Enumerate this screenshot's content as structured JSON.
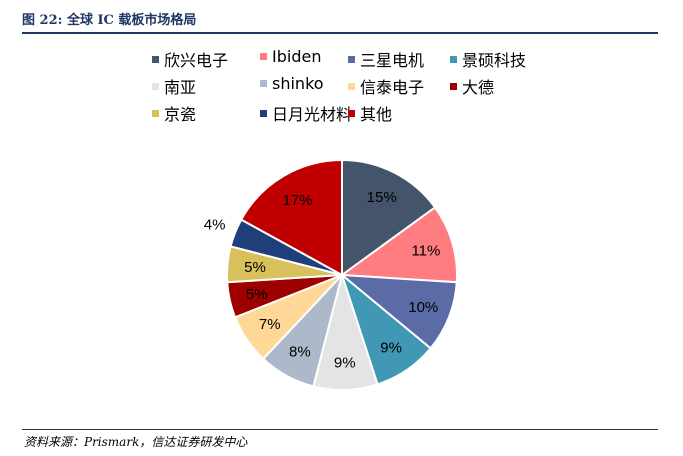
{
  "header": {
    "title": "图 22:  全球 IC 载板市场格局"
  },
  "footer": {
    "source": "资料来源：Prismark，信达证券研发中心"
  },
  "chart_data": {
    "type": "pie",
    "title": "全球 IC 载板市场格局",
    "legend_position": "top",
    "slices": [
      {
        "label": "欣兴电子",
        "value": 15,
        "display": "15%",
        "color": "#44546a"
      },
      {
        "label": "Ibiden",
        "value": 11,
        "display": "11%",
        "color": "#ff7c80"
      },
      {
        "label": "三星电机",
        "value": 10,
        "display": "10%",
        "color": "#5b6ba6"
      },
      {
        "label": "景硕科技",
        "value": 9,
        "display": "9%",
        "color": "#4198b4"
      },
      {
        "label": "南亚",
        "value": 9,
        "display": "9%",
        "color": "#e4e4e4"
      },
      {
        "label": "shinko",
        "value": 8,
        "display": "8%",
        "color": "#acb9ca"
      },
      {
        "label": "信泰电子",
        "value": 7,
        "display": "7%",
        "color": "#ffd898"
      },
      {
        "label": "大德",
        "value": 5,
        "display": "5%",
        "color": "#9e0000"
      },
      {
        "label": "京瓷",
        "value": 5,
        "display": "5%",
        "color": "#d8c05a"
      },
      {
        "label": "日月光材料",
        "value": 4,
        "display": "4%",
        "color": "#1f3f7a"
      },
      {
        "label": "其他",
        "value": 17,
        "display": "17%",
        "color": "#c00000"
      }
    ]
  }
}
